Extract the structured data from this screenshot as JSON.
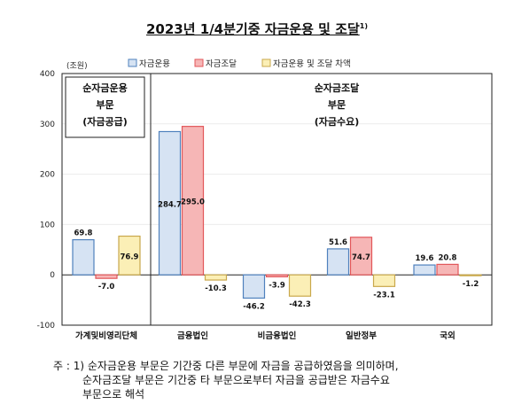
{
  "title": "2023년 1/4분기중 자금운용 및 조달",
  "title_note": "1)",
  "chart_data": {
    "type": "bar",
    "unit_label": "(조원)",
    "categories": [
      "가계및비영리단체",
      "금융법인",
      "비금융법인",
      "일반정부",
      "국외"
    ],
    "series": [
      {
        "name": "자금운용",
        "color": "#4f81bd",
        "fill": "#d6e3f3",
        "values": [
          69.8,
          284.7,
          -46.2,
          51.6,
          19.6
        ],
        "labels": [
          "69.8",
          "284.7",
          "-46.2",
          "51.6",
          "19.6"
        ]
      },
      {
        "name": "자금조달",
        "color": "#e2575a",
        "fill": "#f6b6b6",
        "values": [
          -7.0,
          295.0,
          -3.9,
          74.7,
          20.8
        ],
        "labels": [
          "-7.0",
          "295.0",
          "-3.9",
          "74.7",
          "20.8"
        ]
      },
      {
        "name": "자금운용 및 조달 차액",
        "color": "#c9a84c",
        "fill": "#fbefb6",
        "values": [
          76.9,
          -10.3,
          -42.3,
          -23.1,
          -1.2
        ],
        "labels": [
          "76.9",
          "-10.3",
          "-42.3",
          "-23.1",
          "-1.2"
        ]
      }
    ],
    "ylim": [
      -100,
      400
    ],
    "yticks": [
      400,
      300,
      200,
      100,
      0,
      -100
    ],
    "legend_position": "top",
    "annotations": {
      "left_box": [
        "순자금운용",
        "부문",
        "(자금공급)"
      ],
      "right_box": [
        "순자금조달",
        "부문",
        "(자금수요)"
      ]
    }
  },
  "footnote": {
    "lines": [
      "주 : 1) 순자금운용 부문은 기간중 다른 부문에 자금을 공급하였음을 의미하며,",
      "순자금조달 부문은 기간중 타 부문으로부터 자금을 공급받은 자금수요",
      "부문으로 해석"
    ]
  }
}
